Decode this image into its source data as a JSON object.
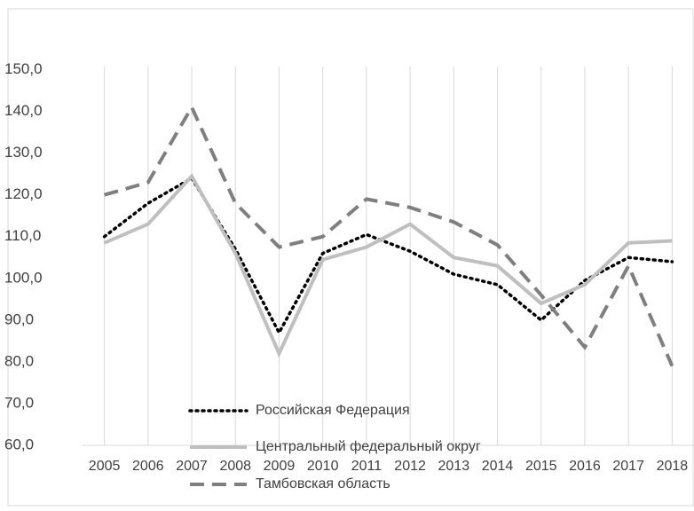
{
  "chart_data": {
    "type": "line",
    "categories": [
      "2005",
      "2006",
      "2007",
      "2008",
      "2009",
      "2010",
      "2011",
      "2012",
      "2013",
      "2014",
      "2015",
      "2016",
      "2017",
      "2018"
    ],
    "series": [
      {
        "name": "Российская Федерация",
        "color": "#000000",
        "dash": "dotted",
        "values": [
          110,
          118,
          124,
          107,
          87,
          106,
          110.5,
          106.5,
          101,
          98.5,
          90,
          99.5,
          105,
          104
        ]
      },
      {
        "name": "Центральный  федеральный округ",
        "color": "#bfbfbf",
        "dash": "solid",
        "values": [
          108.5,
          113,
          124.5,
          106,
          82,
          104.5,
          107.5,
          113,
          105,
          103,
          94,
          98.5,
          108.5,
          109
        ]
      },
      {
        "name": "Тамбовская область",
        "color": "#7f7f7f",
        "dash": "dashed",
        "values": [
          120,
          123,
          141,
          118,
          107.5,
          110,
          119,
          117,
          113.5,
          108,
          96,
          83.5,
          103,
          79
        ]
      }
    ],
    "ylim": [
      60,
      155
    ],
    "yticks": [
      {
        "value": 60,
        "label": "60,0"
      },
      {
        "value": 70,
        "label": "70,0"
      },
      {
        "value": 80,
        "label": "80,0"
      },
      {
        "value": 90,
        "label": "90,0"
      },
      {
        "value": 100,
        "label": "100,0"
      },
      {
        "value": 110,
        "label": "110,0"
      },
      {
        "value": 120,
        "label": "120,0"
      },
      {
        "value": 130,
        "label": "130,0"
      },
      {
        "value": 140,
        "label": "140,0"
      },
      {
        "value": 150,
        "label": "150,0"
      }
    ],
    "grid": "vertical"
  }
}
